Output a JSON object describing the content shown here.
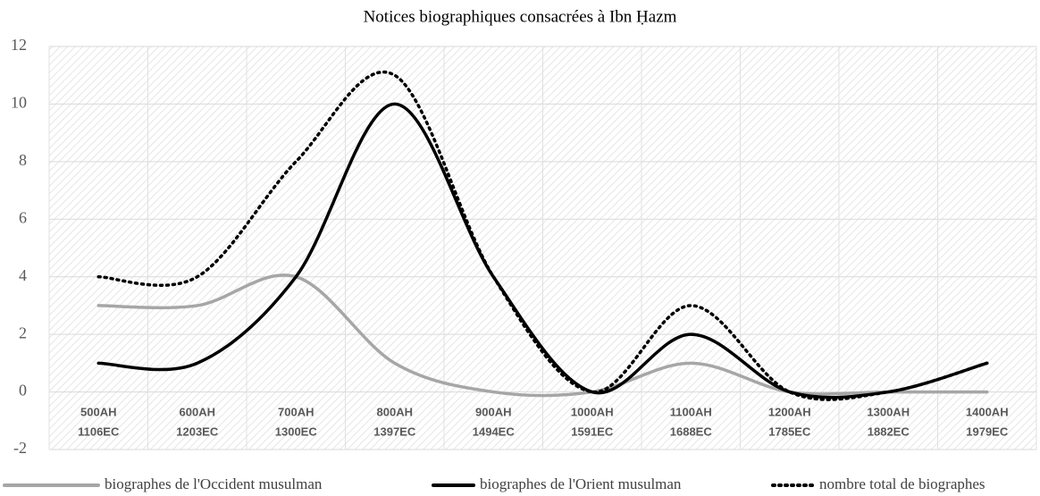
{
  "chart_data": {
    "type": "line",
    "title": "Notices biographiques consacrées à Ibn Ḥazm",
    "categories": [
      [
        "500AH",
        "1106EC"
      ],
      [
        "600AH",
        "1203EC"
      ],
      [
        "700AH",
        "1300EC"
      ],
      [
        "800AH",
        "1397EC"
      ],
      [
        "900AH",
        "1494EC"
      ],
      [
        "1000AH",
        "1591EC"
      ],
      [
        "1100AH",
        "1688EC"
      ],
      [
        "1200AH",
        "1785EC"
      ],
      [
        "1300AH",
        "1882EC"
      ],
      [
        "1400AH",
        "1979EC"
      ]
    ],
    "series": [
      {
        "name": "biographes de l'Occident musulman",
        "color": "#a6a6a6",
        "style": "solid",
        "values": [
          3,
          3,
          4,
          1,
          0,
          0,
          1,
          0,
          0,
          0
        ]
      },
      {
        "name": "biographes de l'Orient musulman",
        "color": "#000000",
        "style": "solid",
        "values": [
          1,
          1,
          4,
          10,
          4,
          0,
          2,
          0,
          0,
          1
        ]
      },
      {
        "name": "nombre total de biographes",
        "color": "#000000",
        "style": "dotted",
        "values": [
          4,
          4,
          8,
          11,
          4,
          0,
          3,
          0,
          0,
          1
        ]
      }
    ],
    "ylim": [
      -2,
      12
    ],
    "yticks": [
      -2,
      0,
      2,
      4,
      6,
      8,
      10,
      12
    ],
    "grid": true,
    "smooth": true,
    "legend": "bottom"
  }
}
